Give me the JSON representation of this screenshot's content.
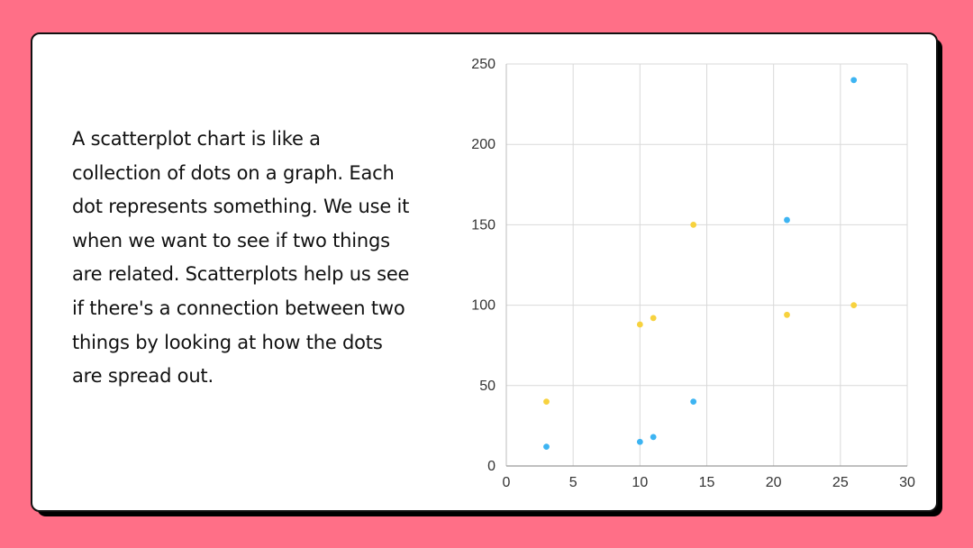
{
  "page": {
    "background_color": "#ff6f87",
    "card_color": "#ffffff",
    "description": "A scatterplot chart is like a collection of dots on a graph. Each dot represents something. We use it when we want to see if two things are related. Scatterplots help us see if there's a connection between two things by looking at how the dots are spread out."
  },
  "chart_data": {
    "type": "scatter",
    "title": "",
    "xlabel": "",
    "ylabel": "",
    "xlim": [
      0,
      30
    ],
    "ylim": [
      0,
      250
    ],
    "x_ticks": [
      "0",
      "5",
      "10",
      "15",
      "20",
      "25",
      "30"
    ],
    "y_ticks": [
      "0",
      "50",
      "100",
      "150",
      "200",
      "250"
    ],
    "grid": true,
    "legend": "none",
    "series": [
      {
        "color": "#3db4f2",
        "points": [
          [
            3,
            12
          ],
          [
            10,
            15
          ],
          [
            11,
            18
          ],
          [
            14,
            40
          ],
          [
            21,
            153
          ],
          [
            26,
            240
          ]
        ]
      },
      {
        "color": "#f7d23e",
        "points": [
          [
            3,
            40
          ],
          [
            10,
            88
          ],
          [
            11,
            92
          ],
          [
            14,
            150
          ],
          [
            21,
            94
          ],
          [
            26,
            100
          ]
        ]
      }
    ]
  }
}
